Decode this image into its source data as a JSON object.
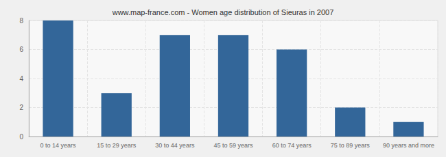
{
  "chart_data": {
    "type": "bar",
    "title": "www.map-france.com - Women age distribution of Sieuras in 2007",
    "categories": [
      "0 to 14 years",
      "15 to 29 years",
      "30 to 44 years",
      "45 to 59 years",
      "60 to 74 years",
      "75 to 89 years",
      "90 years and more"
    ],
    "values": [
      8,
      3,
      7,
      7,
      6,
      2,
      1
    ],
    "color": "#336699",
    "ylim": [
      0,
      8
    ],
    "yticks": [
      0,
      2,
      4,
      6,
      8
    ],
    "grid": true
  }
}
